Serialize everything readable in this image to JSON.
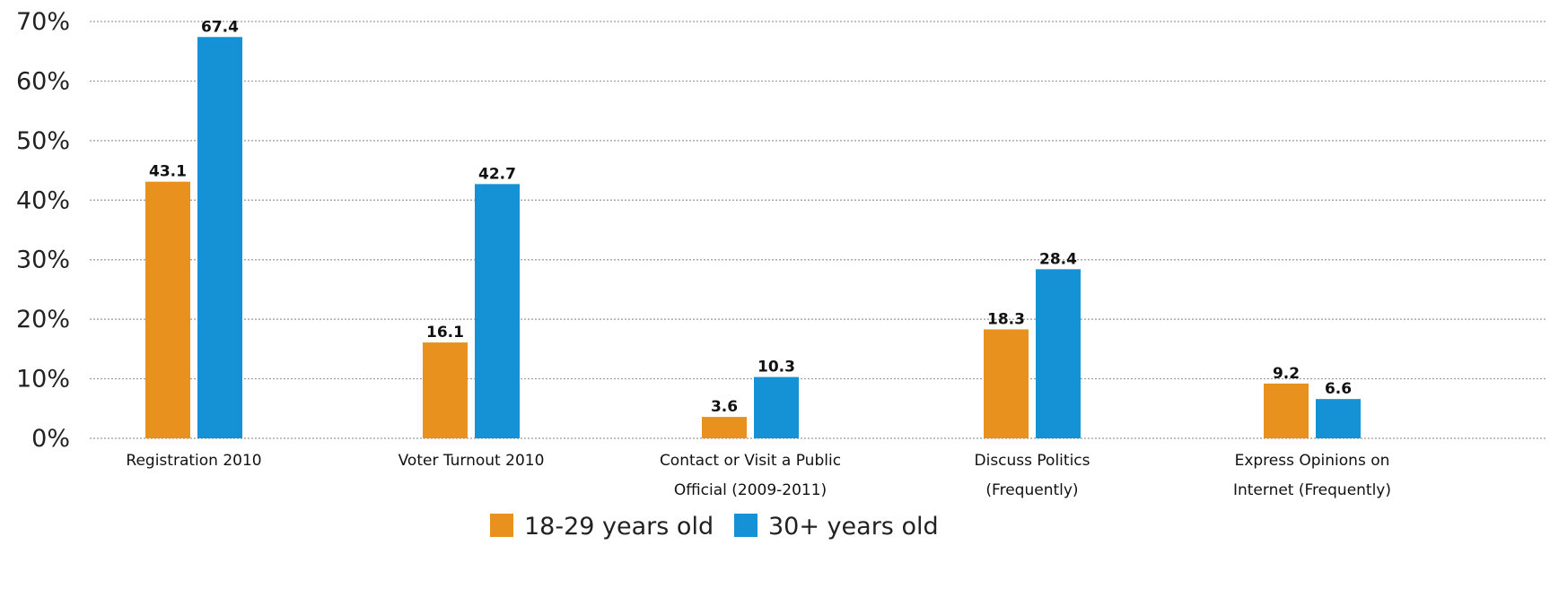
{
  "chart_data": {
    "type": "bar",
    "categories": [
      [
        "Registration 2010"
      ],
      [
        "Voter Turnout 2010"
      ],
      [
        "Contact or Visit a Public",
        "Official (2009-2011)"
      ],
      [
        "Discuss Politics",
        "(Frequently)"
      ],
      [
        "Express Opinions on",
        "Internet (Frequently)"
      ]
    ],
    "series": [
      {
        "name": "18-29 years old",
        "color": "#E8911E",
        "values": [
          43.1,
          16.1,
          3.6,
          18.3,
          9.2
        ],
        "labels": [
          "43.1",
          "16.1",
          "3.6",
          "18.3",
          "9.2"
        ]
      },
      {
        "name": "30+ years old",
        "color": "#1592D6",
        "values": [
          67.4,
          42.7,
          10.3,
          28.4,
          6.6
        ],
        "labels": [
          "67.4",
          "42.7",
          "10.3",
          "28.4",
          "6.6"
        ]
      }
    ],
    "ylim": [
      0,
      70
    ],
    "yticks": [
      0,
      10,
      20,
      30,
      40,
      50,
      60,
      70
    ],
    "ytick_labels": [
      "0%",
      "10%",
      "20%",
      "30%",
      "40%",
      "50%",
      "60%",
      "70%"
    ],
    "grid": true,
    "legend_position": "bottom"
  }
}
